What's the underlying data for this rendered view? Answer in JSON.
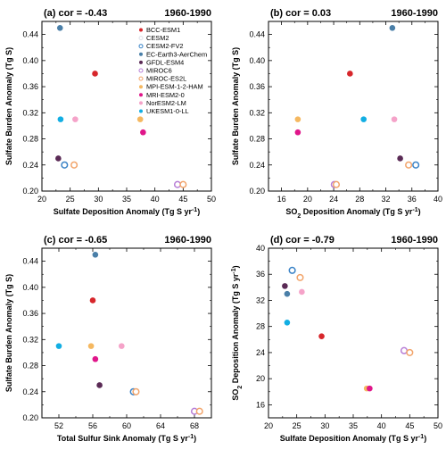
{
  "colors": {
    "BCC-ESM1": "#d7262b",
    "CESM2": "#dde0e8",
    "CESM2-FV2": "#3a83c7",
    "EC-Earth3-AerChem": "#4a7fa8",
    "GFDL-ESM4": "#5a2a55",
    "MIROC6": "#b77ed6",
    "MIROC-ES2L": "#f2a46a",
    "MPI-ESM-1-2-HAM": "#f5b860",
    "MRI-ESM2-0": "#e0168a",
    "NorESM2-LM": "#f5a3c9",
    "UKESM1-0-LL": "#12aee3"
  },
  "chart_data": [
    {
      "type": "scatter",
      "panel": "(a)",
      "cor_label": "cor = -0.43",
      "period": "1960-1990",
      "xlabel": "Sulfate Deposition Anomaly (Tg S yr",
      "xlabel_sup": "-1",
      "xlabel_end": ")",
      "ylabel": "Sulfate Burden Anomaly (Tg S)",
      "xlim": [
        20,
        50
      ],
      "ylim": [
        0.2,
        0.46
      ],
      "xticks": [
        "20",
        "25",
        "30",
        "35",
        "40",
        "45",
        "50"
      ],
      "yticks": [
        "0.20",
        "0.24",
        "0.28",
        "0.32",
        "0.36",
        "0.40",
        "0.44"
      ],
      "legend": {
        "position": "top-right",
        "entries": [
          "BCC-ESM1",
          "CESM2",
          "CESM2-FV2",
          "EC-Earth3-AerChem",
          "GFDL-ESM4",
          "MIROC6",
          "MIROC-ES2L",
          "MPI-ESM-1-2-HAM",
          "MRI-ESM2-0",
          "NorESM2-LM",
          "UKESM1-0-LL"
        ]
      },
      "points": [
        {
          "model": "EC-Earth3-AerChem",
          "x": 23.2,
          "y": 0.45,
          "marker": "filled"
        },
        {
          "model": "BCC-ESM1",
          "x": 29.4,
          "y": 0.38,
          "marker": "filled"
        },
        {
          "model": "UKESM1-0-LL",
          "x": 23.3,
          "y": 0.31,
          "marker": "filled"
        },
        {
          "model": "NorESM2-LM",
          "x": 25.9,
          "y": 0.31,
          "marker": "filled"
        },
        {
          "model": "MPI-ESM-1-2-HAM",
          "x": 37.4,
          "y": 0.31,
          "marker": "filled"
        },
        {
          "model": "MRI-ESM2-0",
          "x": 37.9,
          "y": 0.29,
          "marker": "filled"
        },
        {
          "model": "GFDL-ESM4",
          "x": 22.9,
          "y": 0.25,
          "marker": "filled"
        },
        {
          "model": "CESM2-FV2",
          "x": 24.0,
          "y": 0.24,
          "marker": "open"
        },
        {
          "model": "MIROC-ES2L",
          "x": 25.7,
          "y": 0.24,
          "marker": "open"
        },
        {
          "model": "MIROC6",
          "x": 44.0,
          "y": 0.21,
          "marker": "open"
        },
        {
          "model": "MIROC-ES2L",
          "x": 45.0,
          "y": 0.21,
          "marker": "open"
        }
      ]
    },
    {
      "type": "scatter",
      "panel": "(b)",
      "cor_label": "cor =  0.03",
      "period": "1960-1990",
      "xlabel": "SO",
      "xlabel_sub": "2",
      "xlabel_rest": " Deposition Anomaly (Tg S yr",
      "xlabel_sup": "-1",
      "xlabel_end": ")",
      "ylabel": "Sulfate Burden Anomaly (Tg S)",
      "xlim": [
        14,
        40
      ],
      "ylim": [
        0.2,
        0.46
      ],
      "xticks": [
        "16",
        "20",
        "24",
        "28",
        "32",
        "36",
        "40"
      ],
      "yticks": [
        "0.20",
        "0.24",
        "0.28",
        "0.32",
        "0.36",
        "0.40",
        "0.44"
      ],
      "points": [
        {
          "model": "EC-Earth3-AerChem",
          "x": 33.0,
          "y": 0.45,
          "marker": "filled"
        },
        {
          "model": "BCC-ESM1",
          "x": 26.5,
          "y": 0.38,
          "marker": "filled"
        },
        {
          "model": "MPI-ESM-1-2-HAM",
          "x": 18.5,
          "y": 0.31,
          "marker": "filled"
        },
        {
          "model": "UKESM1-0-LL",
          "x": 28.6,
          "y": 0.31,
          "marker": "filled"
        },
        {
          "model": "NorESM2-LM",
          "x": 33.3,
          "y": 0.31,
          "marker": "filled"
        },
        {
          "model": "MRI-ESM2-0",
          "x": 18.5,
          "y": 0.29,
          "marker": "filled"
        },
        {
          "model": "GFDL-ESM4",
          "x": 34.2,
          "y": 0.25,
          "marker": "filled"
        },
        {
          "model": "MIROC-ES2L",
          "x": 35.5,
          "y": 0.24,
          "marker": "open"
        },
        {
          "model": "CESM2-FV2",
          "x": 36.6,
          "y": 0.24,
          "marker": "open"
        },
        {
          "model": "MIROC6",
          "x": 24.1,
          "y": 0.21,
          "marker": "open"
        },
        {
          "model": "MIROC-ES2L",
          "x": 24.4,
          "y": 0.21,
          "marker": "open"
        }
      ]
    },
    {
      "type": "scatter",
      "panel": "(c)",
      "cor_label": "cor = -0.65",
      "period": "1960-1990",
      "xlabel": "Total Sulfur Sink Anomaly (Tg S yr",
      "xlabel_sup": "-1",
      "xlabel_end": ")",
      "ylabel": "Sulfate Burden Anomaly (Tg S)",
      "xlim": [
        50,
        70
      ],
      "ylim": [
        0.2,
        0.46
      ],
      "xticks": [
        "52",
        "56",
        "60",
        "64",
        "68"
      ],
      "yticks": [
        "0.20",
        "0.24",
        "0.28",
        "0.32",
        "0.36",
        "0.40",
        "0.44"
      ],
      "points": [
        {
          "model": "EC-Earth3-AerChem",
          "x": 56.3,
          "y": 0.45,
          "marker": "filled"
        },
        {
          "model": "BCC-ESM1",
          "x": 56.0,
          "y": 0.38,
          "marker": "filled"
        },
        {
          "model": "UKESM1-0-LL",
          "x": 52.0,
          "y": 0.31,
          "marker": "filled"
        },
        {
          "model": "MPI-ESM-1-2-HAM",
          "x": 55.8,
          "y": 0.31,
          "marker": "filled"
        },
        {
          "model": "NorESM2-LM",
          "x": 59.4,
          "y": 0.31,
          "marker": "filled"
        },
        {
          "model": "MRI-ESM2-0",
          "x": 56.3,
          "y": 0.29,
          "marker": "filled"
        },
        {
          "model": "GFDL-ESM4",
          "x": 56.8,
          "y": 0.25,
          "marker": "filled"
        },
        {
          "model": "CESM2-FV2",
          "x": 60.8,
          "y": 0.24,
          "marker": "open"
        },
        {
          "model": "MIROC-ES2L",
          "x": 61.1,
          "y": 0.24,
          "marker": "open"
        },
        {
          "model": "MIROC6",
          "x": 68.0,
          "y": 0.21,
          "marker": "open"
        },
        {
          "model": "MIROC-ES2L",
          "x": 68.6,
          "y": 0.21,
          "marker": "open"
        }
      ]
    },
    {
      "type": "scatter",
      "panel": "(d)",
      "cor_label": "cor = -0.79",
      "period": "1960-1990",
      "xlabel": "Sulfate Deposition Anomaly (Tg S yr",
      "xlabel_sup": "-1",
      "xlabel_end": ")",
      "ylabel_pre": "SO",
      "ylabel_sub": "2",
      "ylabel_rest": " Deposition Anomaly (Tg S yr",
      "ylabel_sup": "-1",
      "ylabel_end": ")",
      "xlim": [
        20,
        50
      ],
      "ylim": [
        14,
        40
      ],
      "xticks": [
        "20",
        "25",
        "30",
        "35",
        "40",
        "45",
        "50"
      ],
      "yticks": [
        "16",
        "20",
        "24",
        "28",
        "32",
        "36",
        "40"
      ],
      "points": [
        {
          "model": "CESM2-FV2",
          "x": 24.2,
          "y": 36.6,
          "marker": "open"
        },
        {
          "model": "MIROC-ES2L",
          "x": 25.6,
          "y": 35.5,
          "marker": "open"
        },
        {
          "model": "GFDL-ESM4",
          "x": 22.9,
          "y": 34.2,
          "marker": "filled"
        },
        {
          "model": "NorESM2-LM",
          "x": 25.9,
          "y": 33.3,
          "marker": "filled"
        },
        {
          "model": "EC-Earth3-AerChem",
          "x": 23.3,
          "y": 33.0,
          "marker": "filled"
        },
        {
          "model": "UKESM1-0-LL",
          "x": 23.3,
          "y": 28.6,
          "marker": "filled"
        },
        {
          "model": "BCC-ESM1",
          "x": 29.4,
          "y": 26.5,
          "marker": "filled"
        },
        {
          "model": "MIROC6",
          "x": 44.0,
          "y": 24.3,
          "marker": "open"
        },
        {
          "model": "MIROC-ES2L",
          "x": 45.0,
          "y": 24.0,
          "marker": "open"
        },
        {
          "model": "MPI-ESM-1-2-HAM",
          "x": 37.4,
          "y": 18.5,
          "marker": "filled"
        },
        {
          "model": "MRI-ESM2-0",
          "x": 37.9,
          "y": 18.5,
          "marker": "filled"
        }
      ]
    }
  ]
}
